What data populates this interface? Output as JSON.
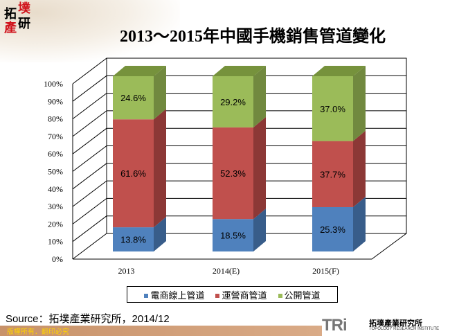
{
  "header": {
    "logo_text": "拓墣產研",
    "title": "2013～2015年中國手機銷售管道變化"
  },
  "chart_data": {
    "type": "bar",
    "stacked": true,
    "percent": true,
    "title": "2013～2015年中國手機銷售管道變化",
    "categories": [
      "2013",
      "2014(E)",
      "2015(F)"
    ],
    "series": [
      {
        "name": "電商線上管道",
        "color": "#4f81bd",
        "values": [
          13.8,
          18.5,
          25.3
        ],
        "labels": [
          "13.8%",
          "18.5%",
          "25.3%"
        ]
      },
      {
        "name": "運營商管道",
        "color": "#c0504d",
        "values": [
          61.6,
          52.3,
          37.7
        ],
        "labels": [
          "61.6%",
          "52.3%",
          "37.7%"
        ]
      },
      {
        "name": "公開管道",
        "color": "#9bbb59",
        "values": [
          24.6,
          29.2,
          37.0
        ],
        "labels": [
          "24.6%",
          "29.2%",
          "37.0%"
        ]
      }
    ],
    "yticks": [
      "0%",
      "10%",
      "20%",
      "30%",
      "40%",
      "50%",
      "60%",
      "70%",
      "80%",
      "90%",
      "100%"
    ],
    "ylim": [
      0,
      100
    ],
    "grid": true,
    "legend": "bottom"
  },
  "source": "Source：拓墣產業研究所，2014/12",
  "footer": {
    "copyright": "版權所有．翻印必究",
    "brand": "TRi",
    "brand_cn": "拓墣產業研究所",
    "brand_en": "TOPOLOGY RESEARCH INSTITUTE"
  }
}
